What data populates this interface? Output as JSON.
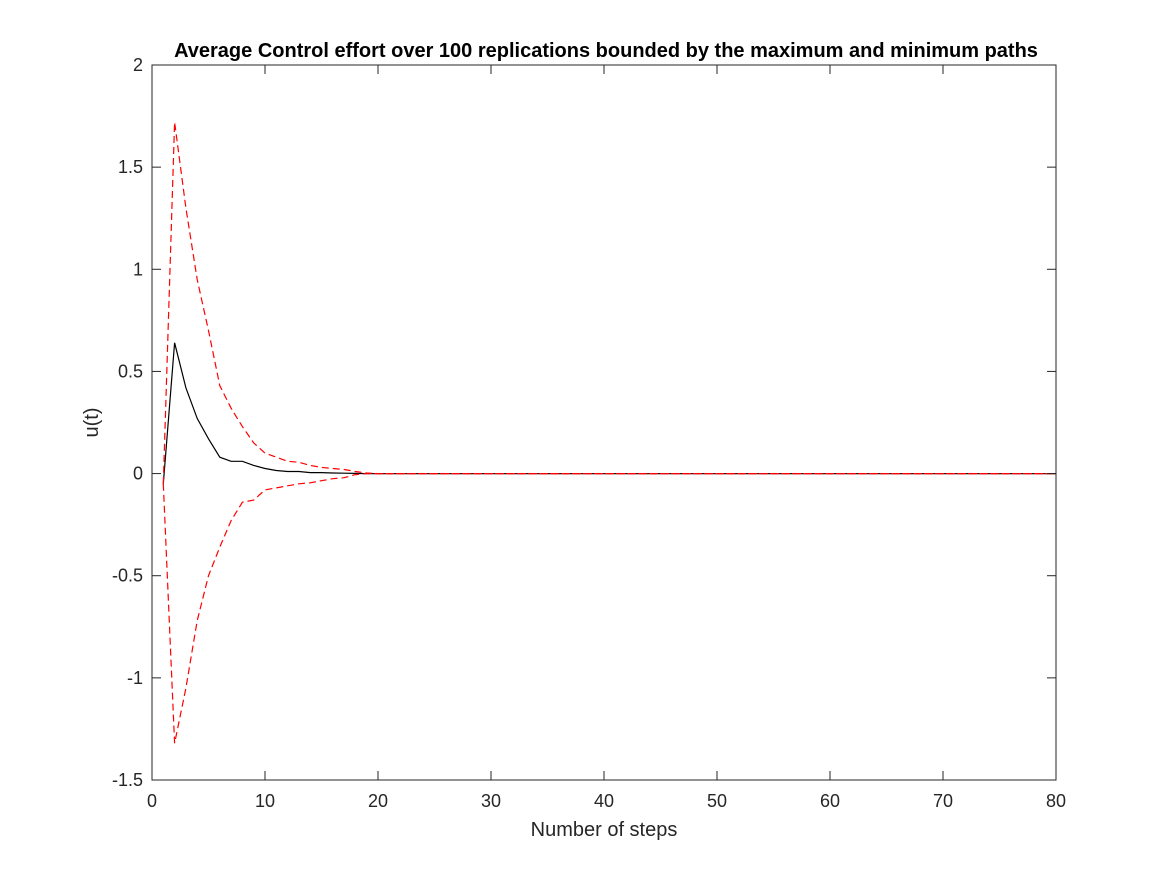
{
  "chart_data": {
    "type": "line",
    "title": "Average Control effort over 100 replications bounded by the maximum and minimum paths",
    "xlabel": "Number of steps",
    "ylabel": "u(t)",
    "xlim": [
      0,
      80
    ],
    "ylim": [
      -1.5,
      2
    ],
    "xticks": [
      "0",
      "10",
      "20",
      "30",
      "40",
      "50",
      "60",
      "70",
      "80"
    ],
    "yticks": [
      "-1.5",
      "-1",
      "-0.5",
      "0",
      "0.5",
      "1",
      "1.5",
      "2"
    ],
    "grid": false,
    "legend": "none",
    "series": [
      {
        "role": "average",
        "color": "#000000",
        "style": "solid",
        "x": [
          1,
          2,
          3,
          4,
          5,
          6,
          7,
          8,
          9,
          10,
          11,
          12,
          13,
          14,
          15,
          16,
          17,
          18,
          19,
          20,
          80
        ],
        "y": [
          -0.05,
          0.64,
          0.42,
          0.27,
          0.17,
          0.08,
          0.06,
          0.06,
          0.04,
          0.025,
          0.015,
          0.01,
          0.01,
          0.005,
          0.005,
          0.003,
          0.002,
          0.001,
          0.0,
          0.0,
          0.0
        ]
      },
      {
        "role": "maximum",
        "color": "#ff0000",
        "style": "dashed",
        "x": [
          1,
          2,
          3,
          4,
          5,
          6,
          7,
          8,
          9,
          10,
          11,
          12,
          13,
          14,
          15,
          16,
          17,
          18,
          19,
          20,
          80
        ],
        "y": [
          -0.05,
          1.72,
          1.3,
          0.95,
          0.7,
          0.43,
          0.32,
          0.23,
          0.15,
          0.1,
          0.08,
          0.06,
          0.055,
          0.04,
          0.03,
          0.025,
          0.02,
          0.01,
          0.003,
          0.0,
          0.0
        ]
      },
      {
        "role": "minimum",
        "color": "#ff0000",
        "style": "dashed",
        "x": [
          1,
          2,
          3,
          4,
          5,
          6,
          7,
          8,
          9,
          10,
          11,
          12,
          13,
          14,
          15,
          16,
          17,
          18,
          19,
          20,
          80
        ],
        "y": [
          -0.05,
          -1.32,
          -1.05,
          -0.72,
          -0.5,
          -0.36,
          -0.23,
          -0.14,
          -0.13,
          -0.08,
          -0.07,
          -0.06,
          -0.05,
          -0.045,
          -0.035,
          -0.025,
          -0.02,
          -0.005,
          0.0,
          0.0,
          0.0
        ]
      }
    ]
  }
}
